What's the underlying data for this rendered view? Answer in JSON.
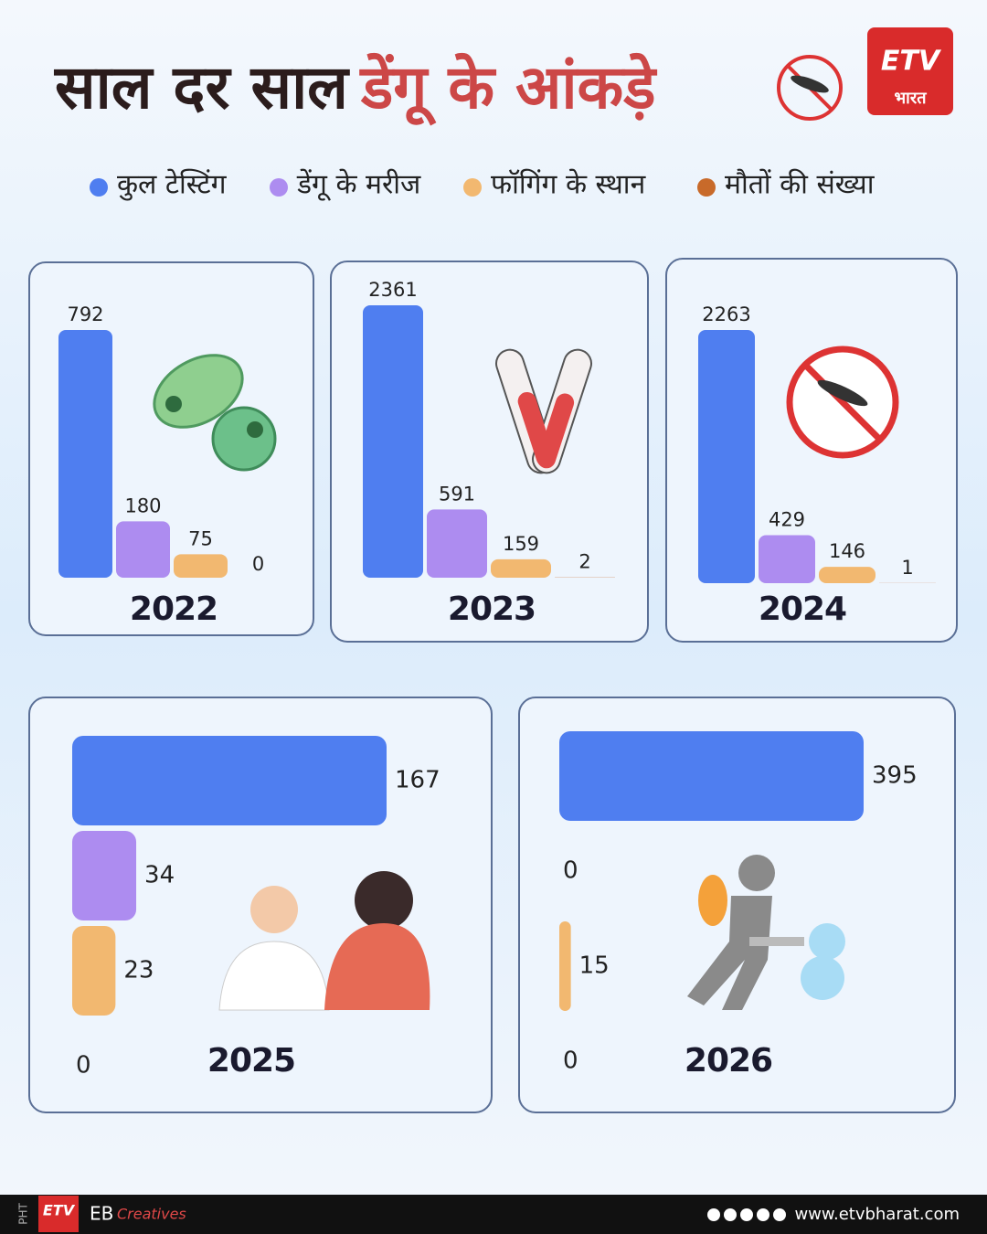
{
  "title": {
    "dark": "साल दर साल",
    "red": "डेंगू के आंकड़े"
  },
  "logo": {
    "brand": "ETV",
    "sub": "भारत"
  },
  "legend": [
    {
      "name": "कुल टेस्टिंग",
      "color": "#4f7ef0"
    },
    {
      "name": "डेंगू के मरीज",
      "color": "#ad8cf0"
    },
    {
      "name": "फॉगिंग के स्थान",
      "color": "#f2b870"
    },
    {
      "name": "मौतों की संख्या",
      "color": "#c86a2a"
    }
  ],
  "chart_data": [
    {
      "type": "bar",
      "orientation": "vertical",
      "title": "2022",
      "values": [
        792,
        180,
        75,
        0
      ]
    },
    {
      "type": "bar",
      "orientation": "vertical",
      "title": "2023",
      "values": [
        2361,
        591,
        159,
        2
      ]
    },
    {
      "type": "bar",
      "orientation": "vertical",
      "title": "2024",
      "values": [
        2263,
        429,
        146,
        1
      ]
    },
    {
      "type": "bar",
      "orientation": "horizontal",
      "title": "2025",
      "values": [
        167,
        34,
        23,
        0
      ]
    },
    {
      "type": "bar",
      "orientation": "horizontal",
      "title": "2026",
      "values": [
        395,
        0,
        15,
        0
      ]
    }
  ],
  "footer": {
    "tag": "PHT",
    "brand": "EB",
    "creatives": "Creatives",
    "website": "www.etvbharat.com"
  }
}
